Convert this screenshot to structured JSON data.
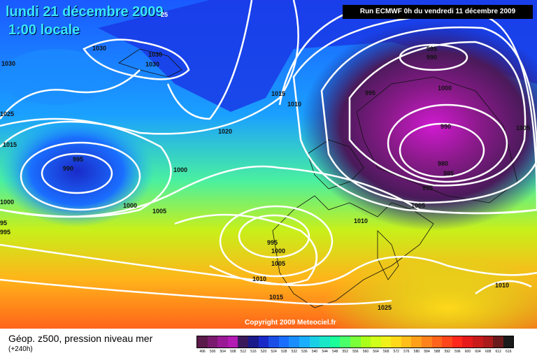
{
  "header": {
    "date_line": "lundi 21 décembre 2009",
    "time_line": "1:00 locale",
    "corner_number": "25",
    "run_info": "Run ECMWF 0h du vendredi 11 décembre 2009"
  },
  "footer": {
    "title": "Géop. z500, pression niveau mer",
    "subtitle": "(+240h)",
    "copyright": "Copyright 2009 Meteociel.fr"
  },
  "legend": {
    "values": [
      "496",
      "500",
      "504",
      "508",
      "512",
      "516",
      "520",
      "524",
      "528",
      "532",
      "536",
      "540",
      "544",
      "548",
      "552",
      "556",
      "560",
      "564",
      "568",
      "572",
      "576",
      "580",
      "584",
      "588",
      "592",
      "596",
      "600",
      "604",
      "608",
      "612",
      "616"
    ],
    "colors": [
      "#5a1a4a",
      "#7a1a6e",
      "#9a1a96",
      "#b41ab4",
      "#3a1a5a",
      "#1a1a8a",
      "#1a2ac8",
      "#1a4ee6",
      "#1a6eff",
      "#1a8eff",
      "#1aaeff",
      "#1acee6",
      "#1ae6c8",
      "#1aff9a",
      "#4aff6a",
      "#7aff3a",
      "#aaff1a",
      "#d0ff1a",
      "#f0f01a",
      "#ffd81a",
      "#ffbe1a",
      "#ffa01a",
      "#ff821a",
      "#ff641a",
      "#ff461a",
      "#ff281a",
      "#e61a1a",
      "#c81a1a",
      "#aa1a1a",
      "#6a1a1a",
      "#1a1a1a"
    ]
  },
  "pressure_labels": [
    {
      "id": "h1030a",
      "text": "1030"
    },
    {
      "id": "h1030b",
      "text": "1030"
    },
    {
      "id": "h1030c",
      "text": "1030"
    },
    {
      "id": "h1030d",
      "text": "1030"
    },
    {
      "id": "l1025",
      "text": "1025"
    },
    {
      "id": "l1015w",
      "text": "1015"
    },
    {
      "id": "l995a",
      "text": "995"
    },
    {
      "id": "l990a",
      "text": "990"
    },
    {
      "id": "l1000a",
      "text": "1000"
    },
    {
      "id": "l1000b",
      "text": "1000"
    },
    {
      "id": "l1000c",
      "text": "1000"
    },
    {
      "id": "l95",
      "text": "95"
    },
    {
      "id": "l995b",
      "text": "995"
    },
    {
      "id": "l1005a",
      "text": "1005"
    },
    {
      "id": "l1020",
      "text": "1020"
    },
    {
      "id": "l1015a",
      "text": "1015"
    },
    {
      "id": "l1010a",
      "text": "1010"
    },
    {
      "id": "l995c",
      "text": "995"
    },
    {
      "id": "l1000d",
      "text": "1000"
    },
    {
      "id": "l1005b",
      "text": "1005"
    },
    {
      "id": "l1010b",
      "text": "1010"
    },
    {
      "id": "l1015b",
      "text": "1015"
    },
    {
      "id": "l1010c",
      "text": "1010"
    },
    {
      "id": "l1025b",
      "text": "1025"
    },
    {
      "id": "l995d",
      "text": "995"
    },
    {
      "id": "l990b",
      "text": "990"
    },
    {
      "id": "l995e",
      "text": "995"
    },
    {
      "id": "l1000e",
      "text": "1000"
    },
    {
      "id": "l990c",
      "text": "990"
    },
    {
      "id": "l980",
      "text": "980"
    },
    {
      "id": "l985",
      "text": "985"
    },
    {
      "id": "l995f",
      "text": "995"
    },
    {
      "id": "l1005c",
      "text": "1005"
    },
    {
      "id": "l1005d",
      "text": "1005"
    },
    {
      "id": "l1010d",
      "text": "1010"
    }
  ]
}
